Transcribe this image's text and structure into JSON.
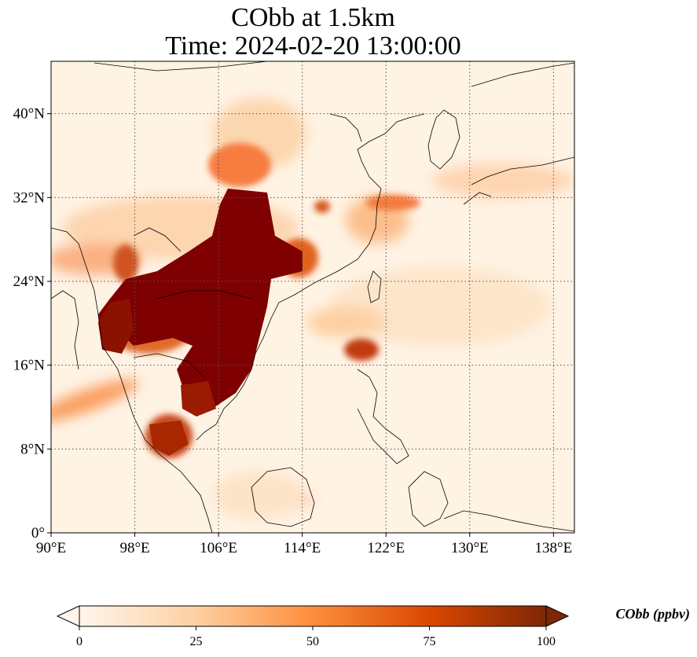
{
  "title": {
    "line1": "CObb at 1.5km",
    "line2": "Time: 2024-02-20 13:00:00"
  },
  "map": {
    "lon_range": [
      90,
      140
    ],
    "lat_range": [
      0,
      45
    ],
    "lon_ticks": [
      {
        "value": 90,
        "label": "90°E"
      },
      {
        "value": 98,
        "label": "98°E"
      },
      {
        "value": 106,
        "label": "106°E"
      },
      {
        "value": 114,
        "label": "114°E"
      },
      {
        "value": 122,
        "label": "122°E"
      },
      {
        "value": 130,
        "label": "130°E"
      },
      {
        "value": 138,
        "label": "138°E"
      }
    ],
    "lat_ticks": [
      {
        "value": 0,
        "label": "0°"
      },
      {
        "value": 8,
        "label": "8°N"
      },
      {
        "value": 16,
        "label": "16°N"
      },
      {
        "value": 24,
        "label": "24°N"
      },
      {
        "value": 32,
        "label": "32°N"
      },
      {
        "value": 40,
        "label": "40°N"
      }
    ],
    "gridlines": true,
    "colormap": [
      "#fff5eb",
      "#fdd0a2",
      "#fd8d3c",
      "#d94801",
      "#7f2704"
    ]
  },
  "colorbar": {
    "label": "CObb (ppbv)",
    "min": 0,
    "max": 100,
    "ticks": [
      {
        "value": 0,
        "label": "0"
      },
      {
        "value": 25,
        "label": "25"
      },
      {
        "value": 50,
        "label": "50"
      },
      {
        "value": 75,
        "label": "75"
      },
      {
        "value": 100,
        "label": "100"
      }
    ],
    "extend": "both"
  }
}
